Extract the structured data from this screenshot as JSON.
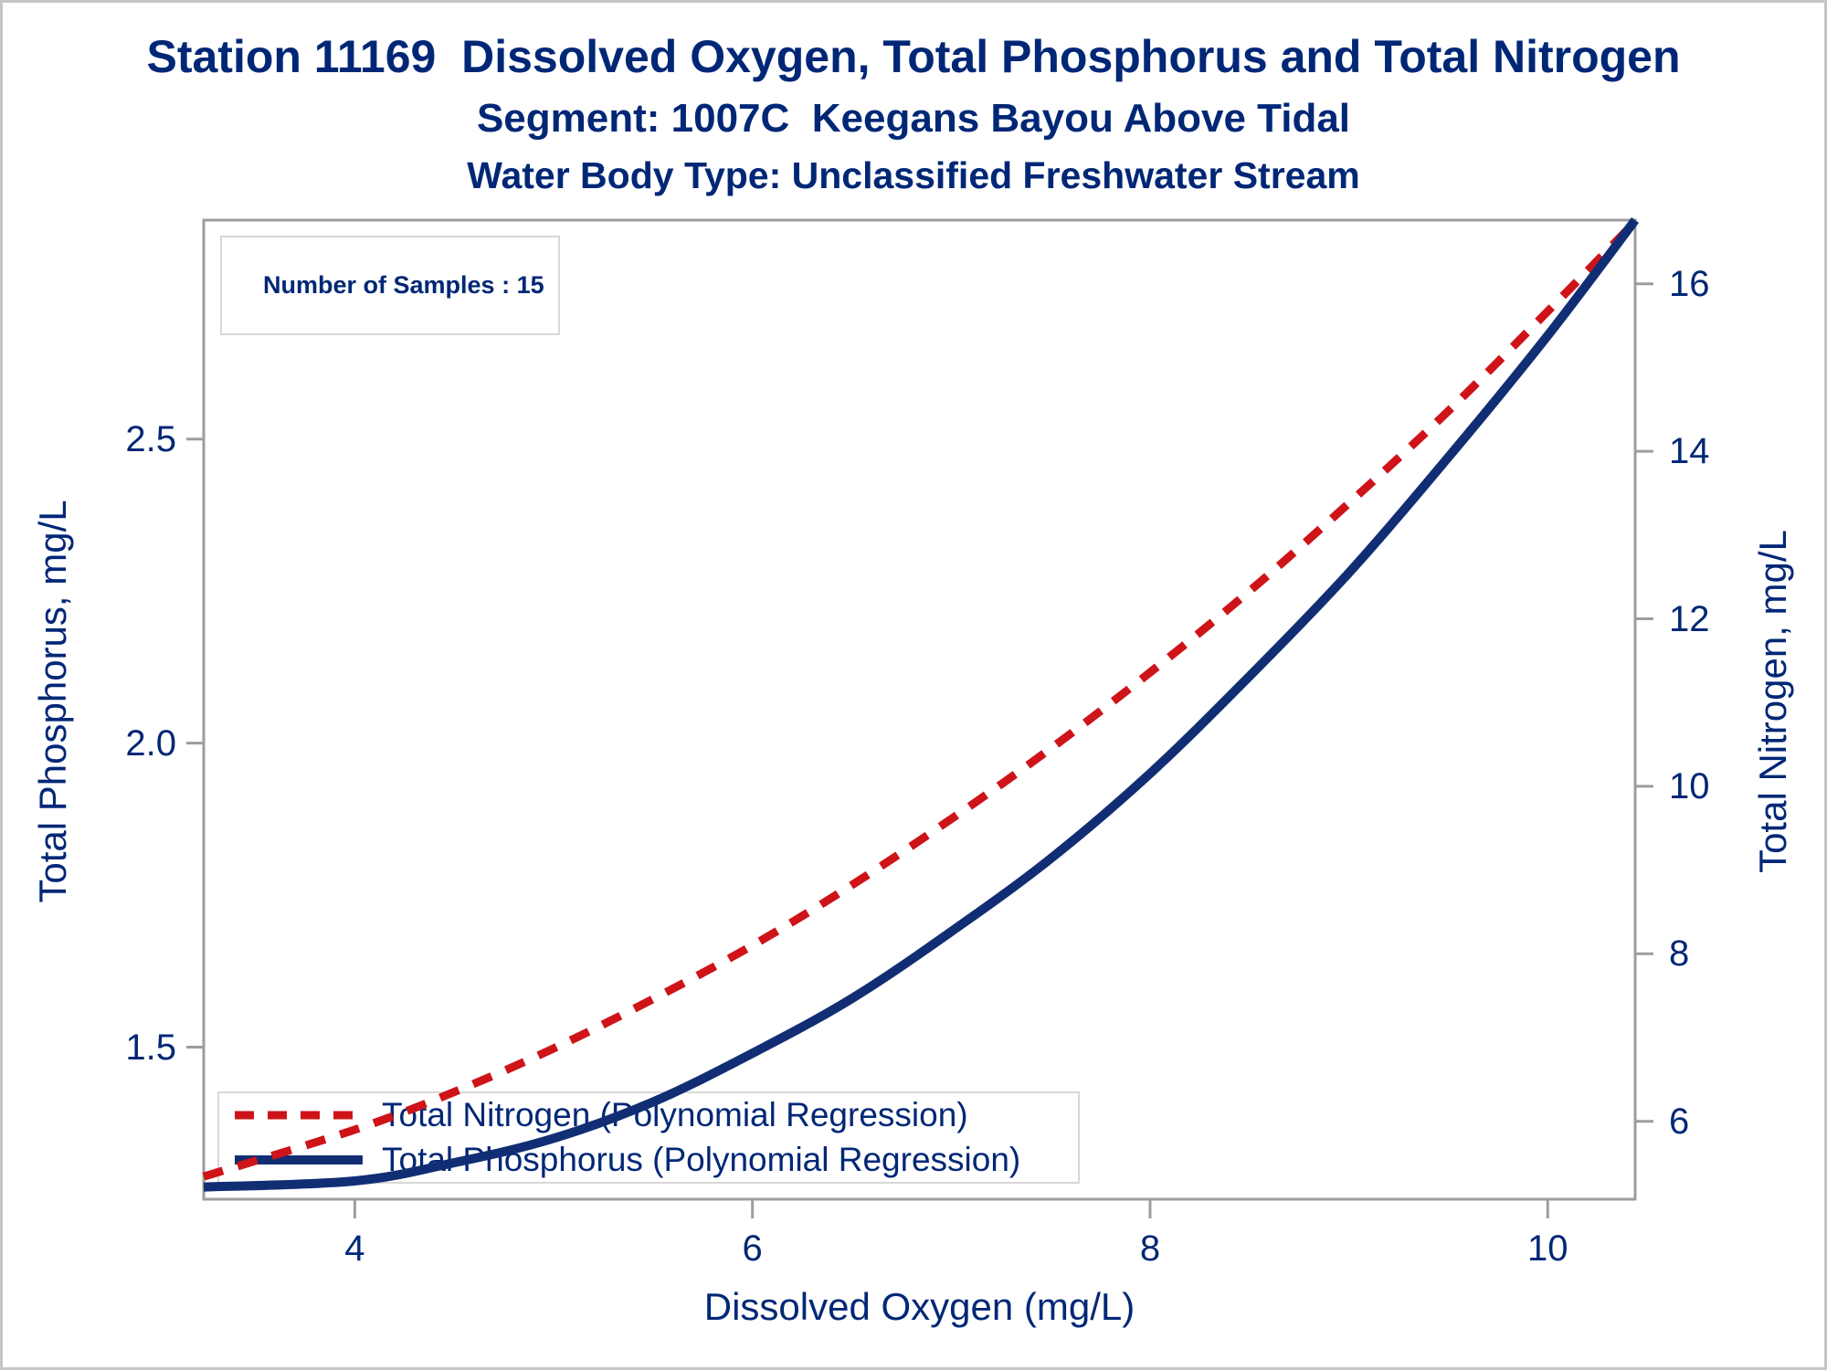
{
  "titles": {
    "line1": "Station 11169  Dissolved Oxygen, Total Phosphorus and Total Nitrogen",
    "line2": "Segment: 1007C  Keegans Bayou Above Tidal",
    "line3": "Water Body Type: Unclassified Freshwater Stream"
  },
  "annotation": {
    "text": "Number of Samples : 15"
  },
  "colors": {
    "text_navy": "#002776",
    "phosphorus_line": "#112E74",
    "nitrogen_line": "#CE1419",
    "axis_gray": "#9D9D9D",
    "box_border": "#D8D8D8",
    "page_border": "#C6C6C6"
  },
  "chart_data": {
    "type": "line",
    "title": "Station 11169  Dissolved Oxygen, Total Phosphorus and Total Nitrogen",
    "subtitle1": "Segment: 1007C  Keegans Bayou Above Tidal",
    "subtitle2": "Water Body Type: Unclassified Freshwater Stream",
    "annotation": "Number of Samples : 15",
    "xlabel": "Dissolved Oxygen (mg/L)",
    "ylabel_left": "Total Phosphorus, mg/L",
    "ylabel_right": "Total Nitrogen, mg/L",
    "x_range": [
      3.24,
      10.44
    ],
    "y_left_range": [
      1.25,
      2.86
    ],
    "y_right_range": [
      5.07,
      16.76
    ],
    "x_ticks": [
      "4",
      "6",
      "8",
      "10"
    ],
    "y_left_ticks": [
      "1.5",
      "2.0",
      "2.5"
    ],
    "y_right_ticks": [
      "6",
      "8",
      "10",
      "12",
      "14",
      "16"
    ],
    "grid": false,
    "legend_position": "inside-bottom-left",
    "x": [
      3.24,
      4,
      4.5,
      5,
      5.5,
      6,
      6.5,
      7,
      7.5,
      8,
      8.5,
      9,
      9.5,
      10,
      10.44
    ],
    "series": [
      {
        "name": "Total Nitrogen (Polynomial Regression)",
        "axis": "right",
        "style": "dashed",
        "color": "#CE1419",
        "values": [
          5.34,
          5.9,
          6.35,
          6.87,
          7.46,
          8.1,
          8.82,
          9.61,
          10.45,
          11.36,
          12.33,
          13.38,
          14.48,
          15.67,
          16.74
        ]
      },
      {
        "name": "Total Phosphorus (Polynomial Regression)",
        "axis": "left",
        "style": "solid",
        "color": "#112E74",
        "values": [
          1.27,
          1.28,
          1.31,
          1.35,
          1.41,
          1.49,
          1.58,
          1.69,
          1.81,
          1.95,
          2.11,
          2.28,
          2.47,
          2.67,
          2.86
        ]
      }
    ]
  }
}
